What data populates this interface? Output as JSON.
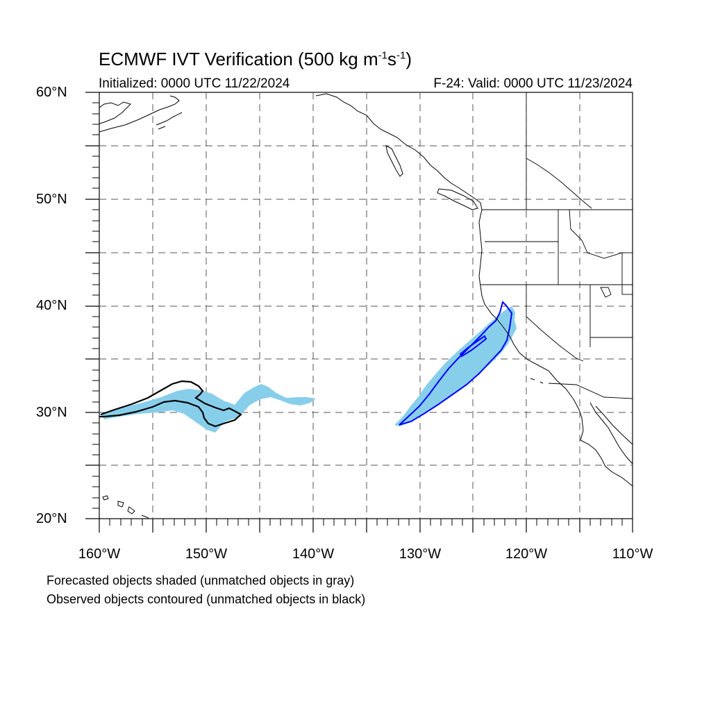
{
  "title_main": "ECMWF IVT Verification (500 kg m",
  "title_sup1": "-1",
  "title_mid": "s",
  "title_sup2": "-1",
  "title_end": ")",
  "initialized": "Initialized: 0000 UTC 11/22/2024",
  "valid": "F-24: Valid: 0000 UTC 11/23/2024",
  "lat_labels": [
    "60°N",
    "50°N",
    "40°N",
    "30°N",
    "20°N"
  ],
  "lon_labels": [
    "160°W",
    "150°W",
    "140°W",
    "130°W",
    "120°W",
    "110°W"
  ],
  "notes": [
    "Forecasted objects shaded (unmatched objects in gray)",
    "Observed objects contoured (unmatched objects in black)"
  ],
  "colors": {
    "matched_forecast_fill": "#87ceeb",
    "matched_observed_contour": "#0000ff",
    "unmatched_observed_contour": "#000000",
    "grid": "#555555"
  }
}
